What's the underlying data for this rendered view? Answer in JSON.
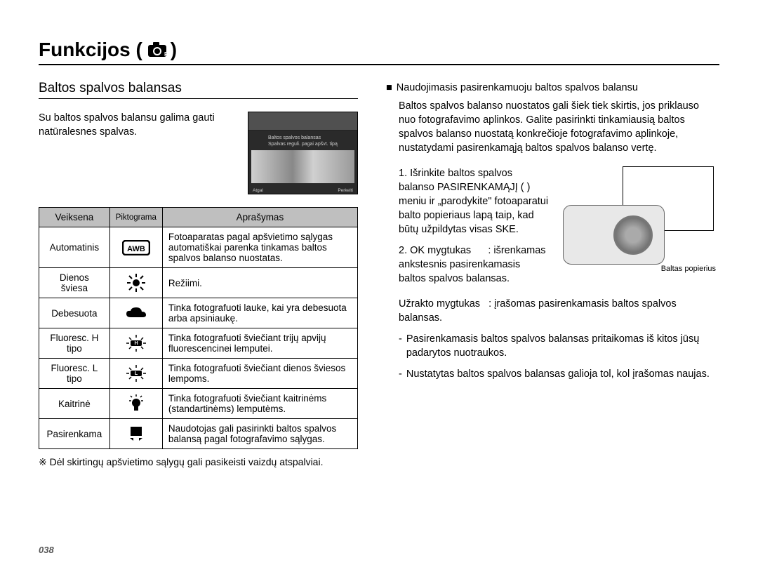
{
  "page": {
    "title": "Funkcijos (",
    "title_close": ")",
    "page_number": "038"
  },
  "left": {
    "subtitle": "Baltos spalvos balansas",
    "intro": "Su baltos spalvos balansu galima gauti natūralesnes spalvas.",
    "lcd": {
      "line1": "Baltos spalvos balansas",
      "line2": "Spalvas reguli. pagai apšvt. tipą",
      "back": "Atgal",
      "move": "Perkelti"
    },
    "headers": {
      "mode": "Veiksena",
      "icon": "Piktograma",
      "desc": "Aprašymas"
    },
    "rows": [
      {
        "mode": "Automatinis",
        "icon": "awb",
        "desc": "Fotoaparatas pagal apšvietimo sąlygas automatiškai parenka tinkamas baltos spalvos balanso nuostatas."
      },
      {
        "mode": "Dienos šviesa",
        "icon": "sun",
        "desc": "Režiimi."
      },
      {
        "mode": "Debesuota",
        "icon": "cloud",
        "desc": "Tinka fotografuoti lauke, kai yra debesuota arba apsiniaukę."
      },
      {
        "mode": "Fluoresc. H tipo",
        "icon": "fluo-h",
        "desc": "Tinka fotografuoti šviečiant trijų apvijų fluorescencinei lemputei."
      },
      {
        "mode": "Fluoresc. L tipo",
        "icon": "fluo-l",
        "desc": "Tinka fotografuoti šviečiant dienos šviesos lempoms."
      },
      {
        "mode": "Kaitrinė",
        "icon": "bulb",
        "desc": "Tinka fotografuoti šviečiant kaitrinėms (standartinėms) lemputėms."
      },
      {
        "mode": "Pasirenkama",
        "icon": "custom",
        "desc": "Naudotojas gali pasirinkti baltos spalvos balansą pagal fotografavimo sąlygas."
      }
    ],
    "footnote": "※ Dėl skirtingų apšvietimo sąlygų gali pasikeisti vaizdų atspalviai."
  },
  "right": {
    "bullet_title": "Naudojimasis pasirenkamuoju baltos spalvos balansu",
    "body": "Baltos spalvos balanso nuostatos gali šiek tiek skirtis, jos priklauso nuo fotografavimo aplinkos. Galite pasirinkti tinkamiausią baltos spalvos balanso nuostatą konkrečioje fotografavimo aplinkoje, nustatydami pasirenkamąją baltos spalvos balanso vertę.",
    "step1": "1. Išrinkite baltos spalvos balanso PASIRENKAMĄJĮ (      ) meniu ir „parodykite\" fotoaparatui balto popieriaus lapą taip, kad būtų užpildytas visas SKE.",
    "step2_label": "2. OK mygtukas",
    "step2_colon": ": išrenkamas ankstesnis pasirenkamasis baltos spalvos balansas.",
    "shutter_label": "Užrakto mygtukas",
    "shutter_colon": ": įrašomas pasirenkamasis baltos spalvos balansas.",
    "caption": "Baltas popierius",
    "dash1": "Pasirenkamasis baltos spalvos balansas pritaikomas iš kitos jūsų padarytos nuotraukos.",
    "dash2": "Nustatytas baltos spalvos balansas galioja tol, kol įrašomas naujas."
  }
}
